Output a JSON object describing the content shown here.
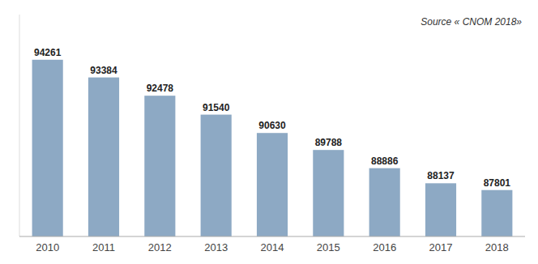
{
  "chart_data": {
    "type": "bar",
    "categories": [
      "2010",
      "2011",
      "2012",
      "2013",
      "2014",
      "2015",
      "2016",
      "2017",
      "2018"
    ],
    "values": [
      94261,
      93384,
      92478,
      91540,
      90630,
      89788,
      88886,
      88137,
      87801
    ],
    "color": "#8da9c4",
    "ylim": [
      85500,
      96500
    ],
    "data_labels": true,
    "tick_labels": "x",
    "annotation": "Source « CNOM 2018»"
  }
}
